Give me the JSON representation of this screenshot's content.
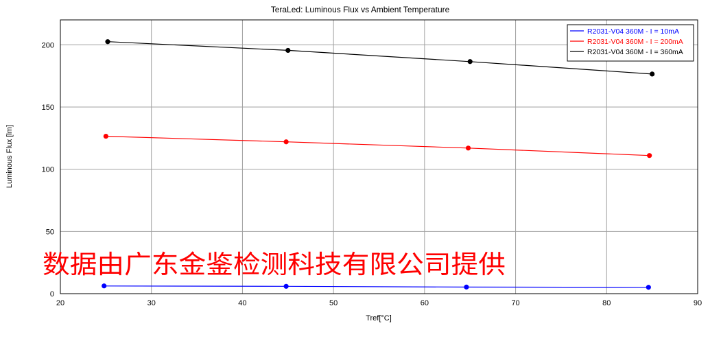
{
  "chart_data": {
    "type": "line",
    "title": "TeraLed: Luminous Flux vs Ambient Temperature",
    "xlabel": "Tref[°C]",
    "ylabel": "Luminous Flux [lm]",
    "xlim": [
      20,
      90
    ],
    "ylim": [
      0,
      220
    ],
    "xticks": [
      "20",
      "30",
      "40",
      "50",
      "60",
      "70",
      "80",
      "90"
    ],
    "yticks": [
      "0",
      "50",
      "100",
      "150",
      "200"
    ],
    "grid": true,
    "legend_position": "top-right",
    "series": [
      {
        "name": "R2031-V04 360M - I = 10mA",
        "color": "#0000ff",
        "x": [
          24.8,
          44.8,
          64.6,
          84.6
        ],
        "y": [
          6.2,
          5.9,
          5.3,
          5.1
        ]
      },
      {
        "name": "R2031-V04 360M - I = 200mA",
        "color": "#ff0000",
        "x": [
          25.0,
          44.8,
          64.8,
          84.7
        ],
        "y": [
          126.5,
          122.0,
          117.0,
          111.0
        ]
      },
      {
        "name": "R2031-V04 360M - I = 360mA",
        "color": "#000000",
        "x": [
          25.2,
          45.0,
          65.0,
          85.0
        ],
        "y": [
          202.5,
          195.5,
          186.5,
          176.5
        ]
      }
    ]
  },
  "watermark": {
    "text": "数据由广东金鉴检测科技有限公司提供",
    "color": "#ff0000"
  }
}
